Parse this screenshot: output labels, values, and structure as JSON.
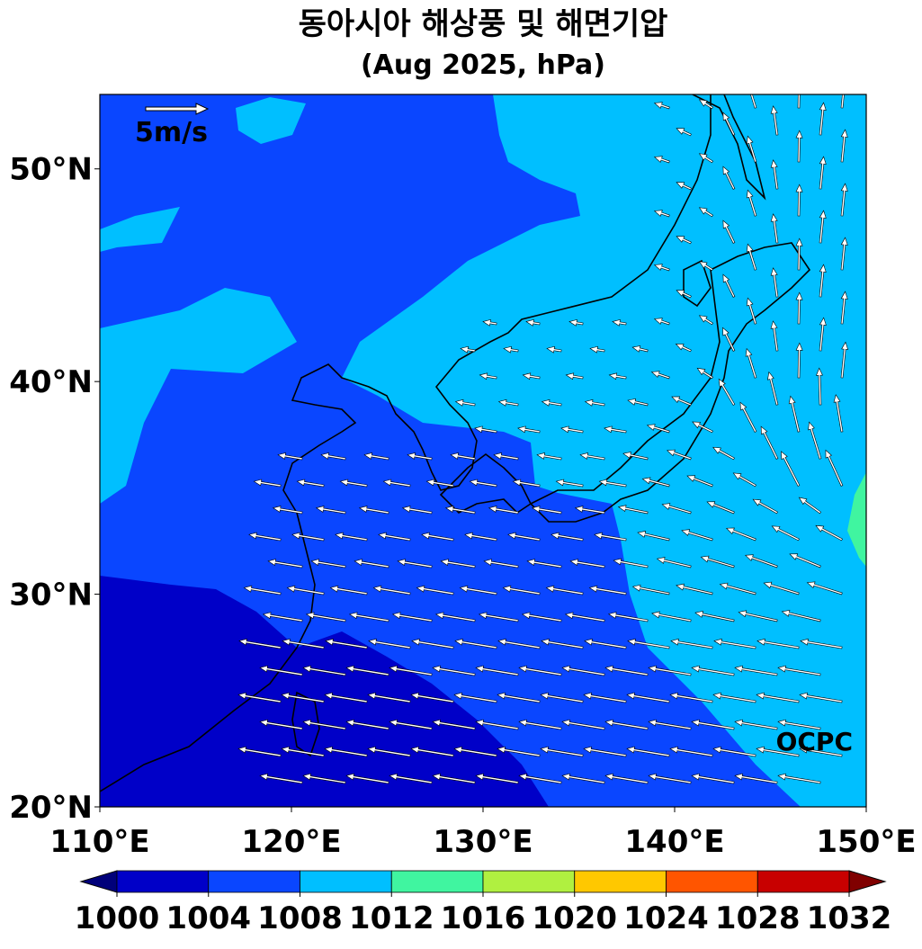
{
  "title": "동아시아 해상풍 및 해면기압",
  "subtitle": "(Aug 2025, hPa)",
  "map": {
    "lon_range": [
      110,
      150
    ],
    "lat_range": [
      20,
      53.5
    ],
    "lat_ticks": [
      {
        "value": 20,
        "label": "20°N"
      },
      {
        "value": 30,
        "label": "30°N"
      },
      {
        "value": 40,
        "label": "40°N"
      },
      {
        "value": 50,
        "label": "50°N"
      }
    ],
    "lon_ticks": [
      {
        "value": 110,
        "label": "110°E"
      },
      {
        "value": 120,
        "label": "120°E"
      },
      {
        "value": 130,
        "label": "130°E"
      },
      {
        "value": 140,
        "label": "140°E"
      },
      {
        "value": 150,
        "label": "150°E"
      }
    ]
  },
  "scale_arrow": {
    "label": "5m/s"
  },
  "watermark": "OCPC",
  "colorbar": {
    "levels": [
      1000,
      1004,
      1008,
      1012,
      1016,
      1020,
      1024,
      1028,
      1032
    ],
    "colors": [
      "#0000c8",
      "#0a46ff",
      "#00bfff",
      "#40f5a0",
      "#b0f040",
      "#ffc800",
      "#ff5500",
      "#c80000"
    ],
    "under_color": "#00007a",
    "over_color": "#800000"
  }
}
